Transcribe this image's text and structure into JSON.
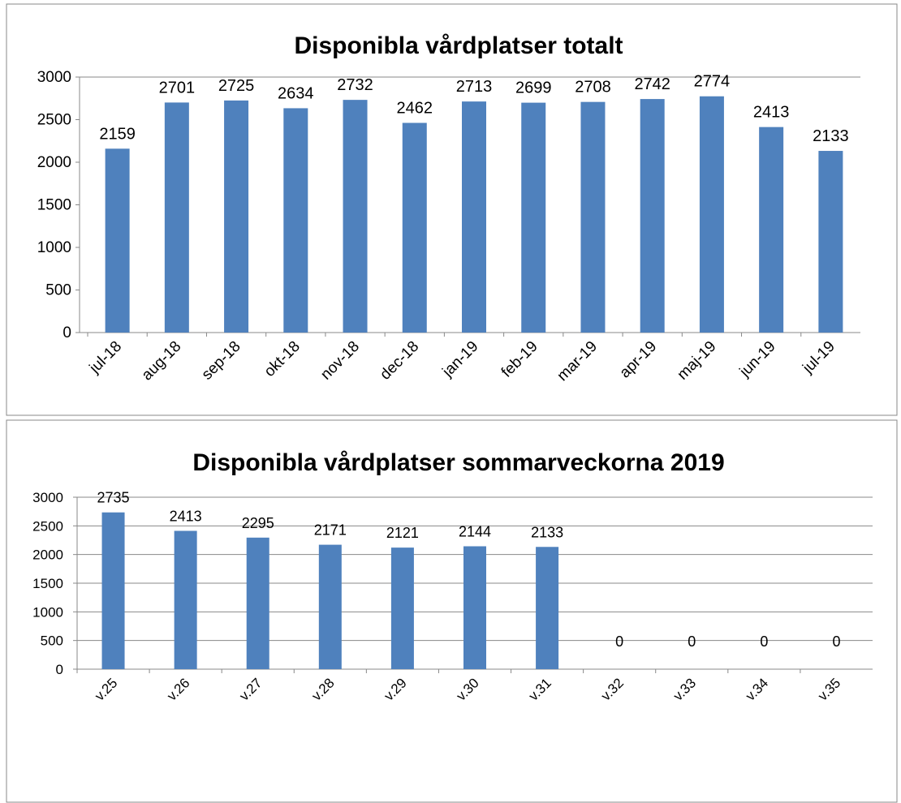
{
  "chart_data": [
    {
      "type": "bar",
      "title": "Disponibla vårdplatser totalt",
      "categories": [
        "jul-18",
        "aug-18",
        "sep-18",
        "okt-18",
        "nov-18",
        "dec-18",
        "jan-19",
        "feb-19",
        "mar-19",
        "apr-19",
        "maj-19",
        "jun-19",
        "jul-19"
      ],
      "values": [
        2159,
        2701,
        2725,
        2634,
        2732,
        2462,
        2713,
        2699,
        2708,
        2742,
        2774,
        2413,
        2133
      ],
      "color": "#4f81bd",
      "ylim": [
        0,
        3000
      ],
      "yticks": [
        0,
        500,
        1000,
        1500,
        2000,
        2500,
        3000
      ],
      "grid": false
    },
    {
      "type": "bar",
      "title": "Disponibla vårdplatser sommarveckorna 2019",
      "categories": [
        "v.25",
        "v.26",
        "v.27",
        "v.28",
        "v.29",
        "v.30",
        "v.31",
        "v.32",
        "v.33",
        "v.34",
        "v.35"
      ],
      "values": [
        2735,
        2413,
        2295,
        2171,
        2121,
        2144,
        2133,
        0,
        0,
        0,
        0
      ],
      "color": "#4f81bd",
      "ylim": [
        0,
        3000
      ],
      "yticks": [
        0,
        500,
        1000,
        1500,
        2000,
        2500,
        3000
      ],
      "grid": true
    }
  ]
}
